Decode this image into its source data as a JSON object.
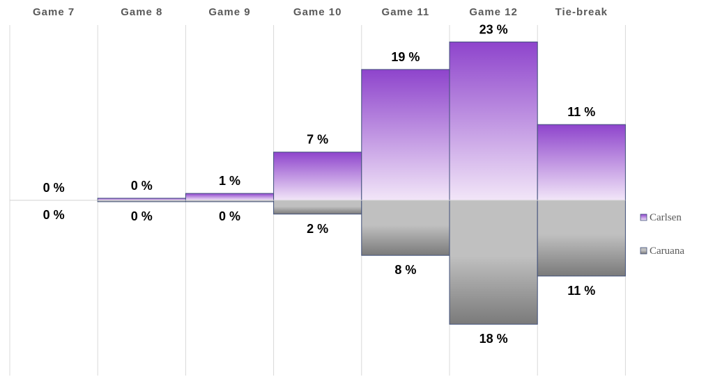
{
  "chart_data": {
    "type": "bar",
    "categories": [
      "Game 7",
      "Game 8",
      "Game 9",
      "Game 10",
      "Game 11",
      "Game 12",
      "Tie-break"
    ],
    "series": [
      {
        "name": "Carlsen",
        "values": [
          0,
          0.3,
          1,
          7,
          19,
          23,
          11
        ],
        "labels": [
          "0 %",
          "0 %",
          "1 %",
          "7 %",
          "19 %",
          "23 %",
          "11 %"
        ],
        "color_top": "#8e44cc",
        "color_bottom": "#f2e6f8"
      },
      {
        "name": "Caruana",
        "values": [
          0,
          0.2,
          0.2,
          2,
          8,
          18,
          11
        ],
        "labels": [
          "0 %",
          "0 %",
          "0 %",
          "2 %",
          "8 %",
          "18 %",
          "11 %"
        ],
        "color_top": "#c0c0c0",
        "color_bottom": "#7a7a7a",
        "direction": "down"
      }
    ],
    "ylim": [
      -25,
      25
    ],
    "grid": "vertical",
    "legend": "right"
  }
}
